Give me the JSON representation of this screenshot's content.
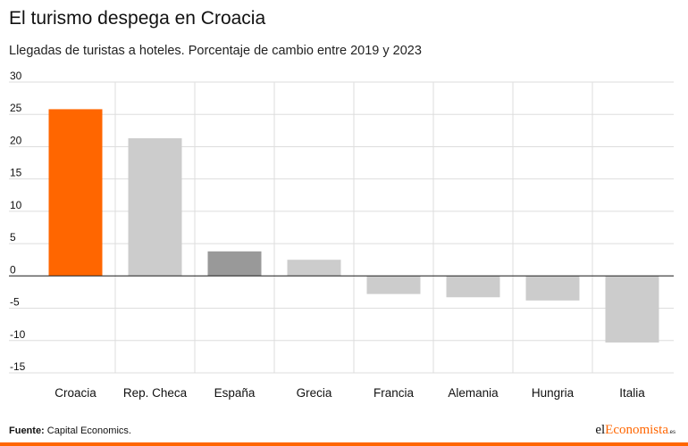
{
  "title": "El turismo despega en Croacia",
  "subtitle": "Llegadas de turistas a hoteles. Porcentaje de cambio entre 2019 y 2023",
  "footer": {
    "source_label": "Fuente:",
    "source_text": "Capital Economics."
  },
  "brand": {
    "part1": "el",
    "part2": "Economista",
    "part3": ".es"
  },
  "colors": {
    "highlight": "#ff6600",
    "default_bar": "#cccccc",
    "dark_bar": "#999999",
    "grid": "#dddddd"
  },
  "chart_data": {
    "type": "bar",
    "categories": [
      "Croacia",
      "Rep. Checa",
      "España",
      "Grecia",
      "Francia",
      "Alemania",
      "Hungria",
      "Italia"
    ],
    "values": [
      25.8,
      21.3,
      3.8,
      2.5,
      -2.8,
      -3.3,
      -3.8,
      -10.3
    ],
    "bar_colors": [
      "#ff6600",
      "#cccccc",
      "#999999",
      "#cccccc",
      "#cccccc",
      "#cccccc",
      "#cccccc",
      "#cccccc"
    ],
    "yticks": [
      30,
      25,
      20,
      15,
      10,
      5,
      0,
      -5,
      -10,
      -15
    ],
    "ylim": [
      -15,
      30
    ],
    "grid": true
  }
}
